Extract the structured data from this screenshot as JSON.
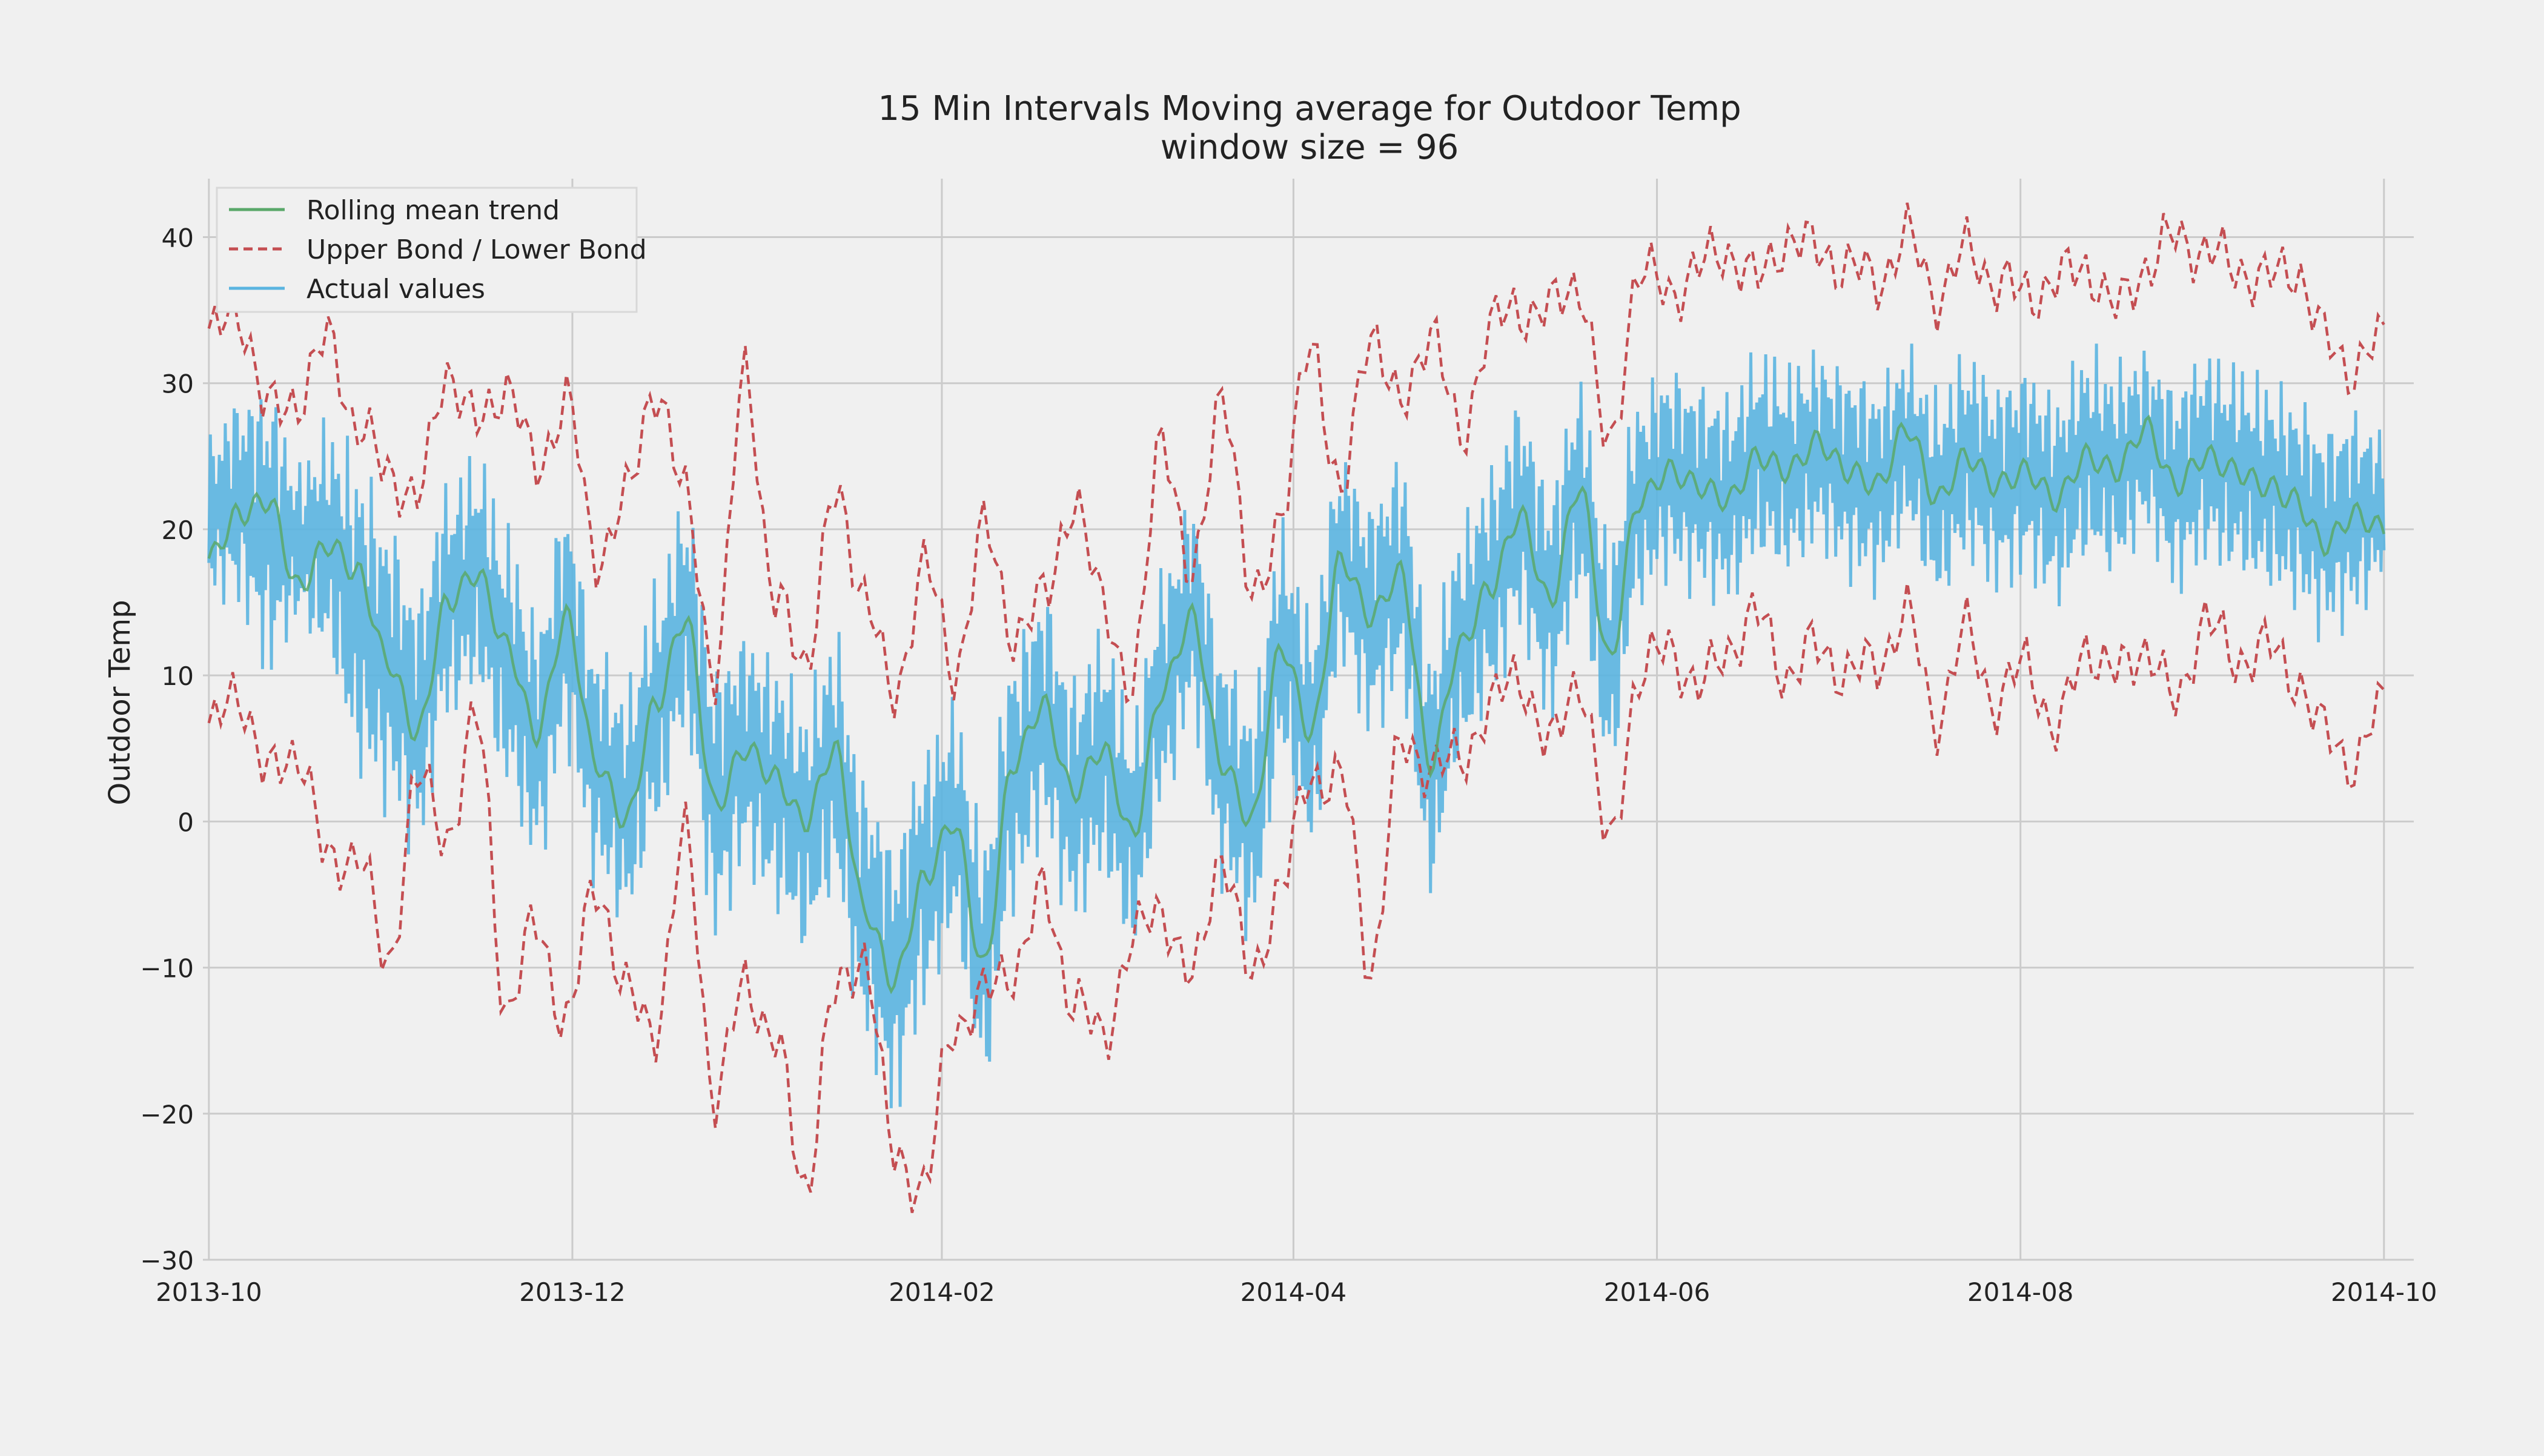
{
  "chart_data": {
    "type": "line",
    "title": "15 Min Intervals Moving average for Outdoor Temp",
    "subtitle": "window size = 96",
    "xlabel": "",
    "ylabel": "Outdoor Temp",
    "x_range": [
      "2013-09-30",
      "2014-10-06"
    ],
    "ylim": [
      -30,
      44
    ],
    "xticks": [
      "2013-10",
      "2013-12",
      "2014-02",
      "2014-04",
      "2014-06",
      "2014-08",
      "2014-10"
    ],
    "yticks": [
      40,
      30,
      20,
      10,
      0,
      -10,
      -20,
      -30
    ],
    "ytick_labels": [
      "40",
      "30",
      "20",
      "10",
      "0",
      "−10",
      "−20",
      "−30"
    ],
    "grid": true,
    "legend_placement": "top-left",
    "legend": [
      "Rolling mean trend",
      "Upper Bond / Lower Bond",
      "Actual values"
    ],
    "colors": {
      "background": "#f0f0f0",
      "grid": "#cbcbcb",
      "rolling_mean": "#5aa86a",
      "bounds": "#c44e52",
      "actual": "#5ab4e0",
      "text": "#222222"
    },
    "series": [
      {
        "name": "Rolling mean trend",
        "x": [
          "2013-10-01",
          "2013-10-06",
          "2013-10-11",
          "2013-10-16",
          "2013-10-21",
          "2013-10-26",
          "2013-10-31",
          "2013-11-05",
          "2013-11-10",
          "2013-11-15",
          "2013-11-20",
          "2013-11-25",
          "2013-11-30",
          "2013-12-05",
          "2013-12-10",
          "2013-12-15",
          "2013-12-20",
          "2013-12-25",
          "2013-12-30",
          "2014-01-04",
          "2014-01-09",
          "2014-01-14",
          "2014-01-19",
          "2014-01-24",
          "2014-01-29",
          "2014-02-03",
          "2014-02-08",
          "2014-02-13",
          "2014-02-18",
          "2014-02-23",
          "2014-02-28",
          "2014-03-05",
          "2014-03-10",
          "2014-03-15",
          "2014-03-20",
          "2014-03-25",
          "2014-03-30",
          "2014-04-04",
          "2014-04-09",
          "2014-04-14",
          "2014-04-19",
          "2014-04-24",
          "2014-04-29",
          "2014-05-04",
          "2014-05-09",
          "2014-05-14",
          "2014-05-19",
          "2014-05-24",
          "2014-05-29",
          "2014-06-03",
          "2014-06-08",
          "2014-06-13",
          "2014-06-18",
          "2014-06-23",
          "2014-06-28",
          "2014-07-03",
          "2014-07-08",
          "2014-07-13",
          "2014-07-18",
          "2014-07-23",
          "2014-07-28",
          "2014-08-02",
          "2014-08-07",
          "2014-08-12",
          "2014-08-17",
          "2014-08-22",
          "2014-08-27",
          "2014-09-01",
          "2014-09-06",
          "2014-09-11",
          "2014-09-16",
          "2014-09-21",
          "2014-09-26",
          "2014-10-01"
        ],
        "values": [
          18,
          21,
          22,
          16,
          19,
          17,
          11,
          6,
          15,
          17,
          12,
          6,
          14,
          4,
          0,
          8,
          14,
          1,
          5,
          3,
          0,
          5,
          -6,
          -11,
          -4,
          0,
          -10,
          4,
          8,
          2,
          5,
          -1,
          9,
          14,
          4,
          0,
          12,
          6,
          18,
          14,
          17,
          4,
          12,
          16,
          21,
          15,
          23,
          11,
          22,
          24,
          23,
          22,
          25,
          24,
          26,
          24,
          23,
          27,
          22,
          25,
          23,
          24,
          22,
          25,
          24,
          27,
          23,
          25,
          24,
          23,
          22,
          19,
          21,
          20
        ]
      },
      {
        "name": "Upper Bond / Lower Bond",
        "upper": [
          33,
          35,
          28,
          29,
          33,
          27,
          24,
          22,
          31,
          27,
          30,
          24,
          29,
          18,
          22,
          30,
          22,
          10,
          31,
          15,
          11,
          22,
          16,
          8,
          18,
          10,
          20,
          13,
          15,
          22,
          15,
          9,
          27,
          16,
          30,
          15,
          21,
          33,
          22,
          34,
          28,
          34,
          26,
          34,
          35,
          35,
          37,
          25,
          38,
          36,
          38,
          39,
          37,
          40,
          39,
          38,
          37,
          40,
          36,
          39,
          37,
          36,
          37,
          38,
          35,
          38,
          40,
          39,
          38,
          37,
          38,
          33,
          31,
          33
        ],
        "lower": [
          6,
          9,
          3,
          5,
          -3,
          -2,
          -10,
          3,
          -1,
          7,
          -13,
          -7,
          -14,
          -4,
          -12,
          -14,
          -1,
          -19,
          -11,
          -15,
          -25,
          -12,
          -9,
          -23,
          -25,
          -14,
          -12,
          -10,
          -5,
          -12,
          -15,
          -8,
          -6,
          -11,
          -2,
          -11,
          -4,
          3,
          3,
          -10,
          5,
          4,
          4,
          8,
          10,
          5,
          10,
          -2,
          10,
          12,
          9,
          12,
          14,
          10,
          12,
          10,
          11,
          14,
          7,
          13,
          8,
          11,
          6,
          12,
          10,
          12,
          8,
          14,
          11,
          12,
          10,
          6,
          4,
          8
        ]
      },
      {
        "name": "Actual values",
        "low_envelope": [
          15,
          14,
          9,
          13,
          10,
          2,
          0,
          -3,
          6,
          8,
          1,
          -4,
          4,
          -5,
          -8,
          -2,
          5,
          -9,
          -4,
          -7,
          -10,
          -6,
          -16,
          -21,
          -14,
          -9,
          -19,
          -7,
          -2,
          -8,
          -5,
          -10,
          0,
          6,
          -5,
          -9,
          3,
          -3,
          10,
          5,
          8,
          -6,
          3,
          7,
          12,
          6,
          14,
          2,
          14,
          16,
          15,
          14,
          17,
          16,
          18,
          16,
          15,
          19,
          14,
          17,
          15,
          16,
          14,
          17,
          16,
          19,
          15,
          17,
          16,
          15,
          14,
          12,
          13,
          16
        ],
        "high_envelope": [
          27,
          30,
          31,
          25,
          28,
          26,
          22,
          17,
          24,
          26,
          21,
          15,
          23,
          13,
          10,
          17,
          23,
          12,
          14,
          12,
          9,
          14,
          4,
          0,
          6,
          9,
          0,
          13,
          17,
          11,
          14,
          8,
          18,
          23,
          13,
          9,
          21,
          15,
          26,
          23,
          26,
          13,
          21,
          25,
          30,
          24,
          31,
          20,
          30,
          32,
          31,
          30,
          33,
          32,
          33,
          32,
          31,
          33,
          30,
          33,
          31,
          32,
          30,
          33,
          32,
          33,
          31,
          33,
          32,
          31,
          30,
          28,
          29,
          27
        ]
      }
    ]
  }
}
